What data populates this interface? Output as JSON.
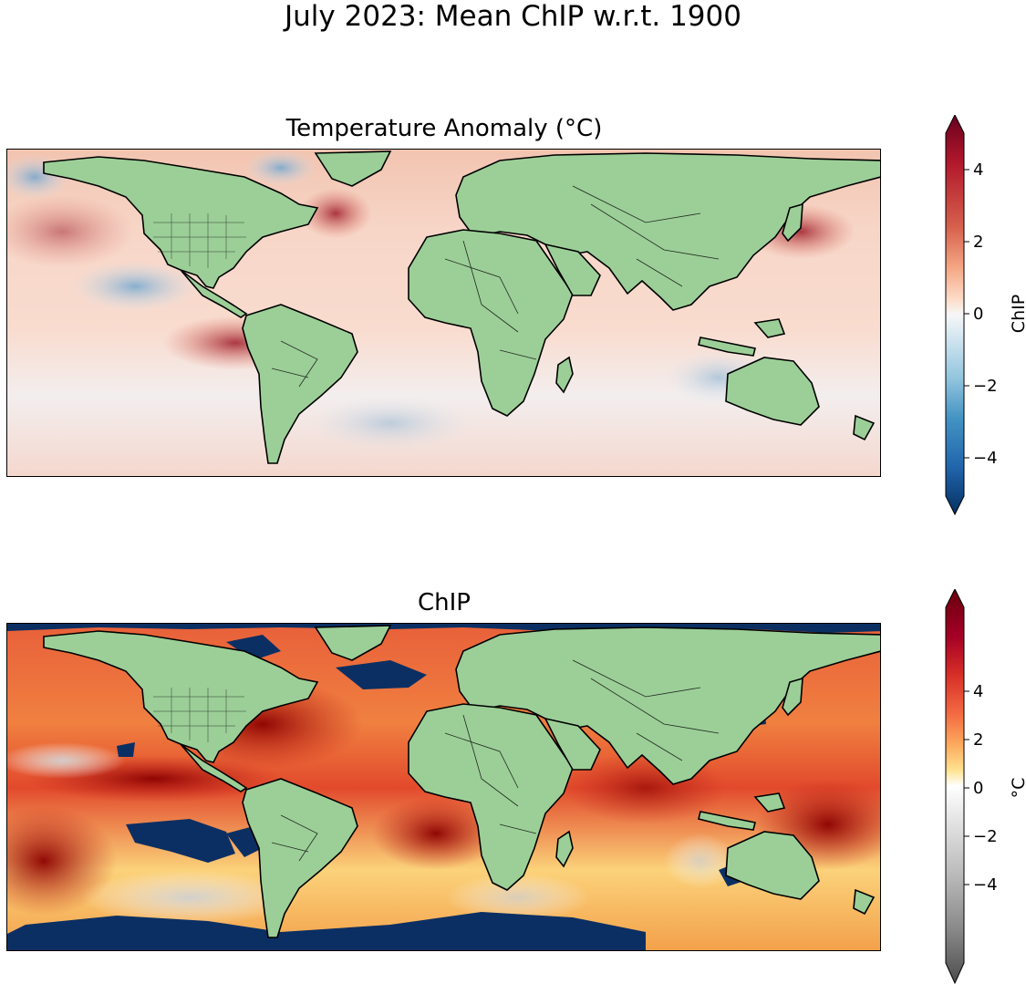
{
  "figure": {
    "suptitle": "July 2023: Mean ChIP w.r.t. 1900"
  },
  "panels": [
    {
      "title": "Temperature Anomaly (°C)",
      "colormap": "red-blue diverging",
      "colorbar": {
        "label": "ChIP",
        "ticks": [
          "4",
          "2",
          "0",
          "−2",
          "−4"
        ],
        "tick_values": [
          4,
          2,
          0,
          -2,
          -4
        ],
        "range": [
          -5,
          5
        ],
        "extend": "both",
        "colors": [
          "#053061",
          "#2166ac",
          "#4393c3",
          "#92c5de",
          "#d1e5f0",
          "#f7f7f7",
          "#fddbc7",
          "#f4a582",
          "#d6604d",
          "#b2182b",
          "#67001f"
        ]
      }
    },
    {
      "title": "ChIP",
      "colormap": "grey-white-yellow-red",
      "colorbar": {
        "label": "°C",
        "ticks": [
          "4",
          "2",
          "0",
          "−2",
          "−4"
        ],
        "tick_values": [
          4,
          2,
          0,
          -2,
          -4
        ],
        "range": [
          -7,
          7
        ],
        "extend": "both",
        "colors": [
          "#4d4d4d",
          "#8a8a8a",
          "#bcbcbc",
          "#e0e0e0",
          "#ffffff",
          "#fee391",
          "#fdae61",
          "#f46d43",
          "#d73027",
          "#a50026",
          "#67000d"
        ]
      }
    }
  ],
  "land_color": "#9ccf98",
  "ocean_anomaly_high": "#67000d",
  "ocean_cold_patch": "#08306b"
}
